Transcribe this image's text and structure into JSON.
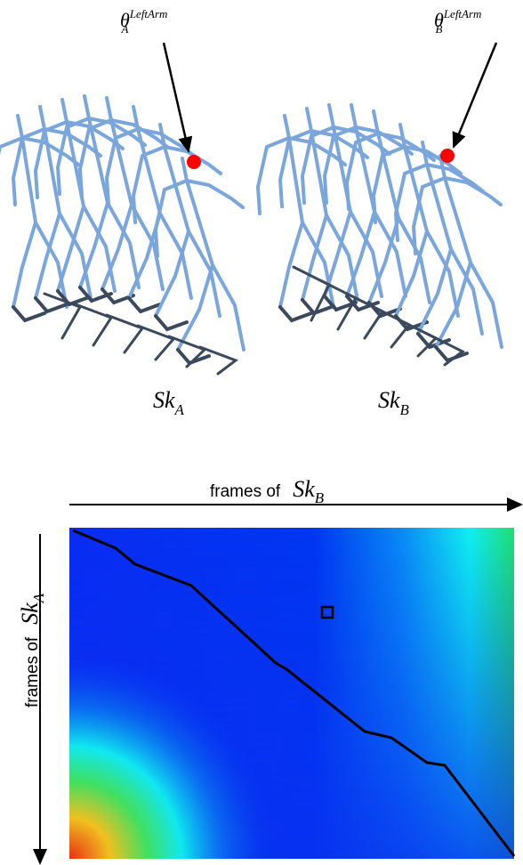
{
  "top_labels": [
    {
      "symbol": "θ",
      "sub": "A",
      "sup": "LeftArm"
    },
    {
      "symbol": "θ",
      "sub": "B",
      "sup": "LeftArm"
    }
  ],
  "skeletons": [
    {
      "name": "Sk",
      "sub": "A"
    },
    {
      "name": "Sk",
      "sub": "B"
    }
  ],
  "matrix": {
    "x_axis": {
      "prefix": "frames of",
      "name": "Sk",
      "sub": "B"
    },
    "y_axis": {
      "prefix": "frames of",
      "name": "Sk",
      "sub": "A"
    }
  }
}
